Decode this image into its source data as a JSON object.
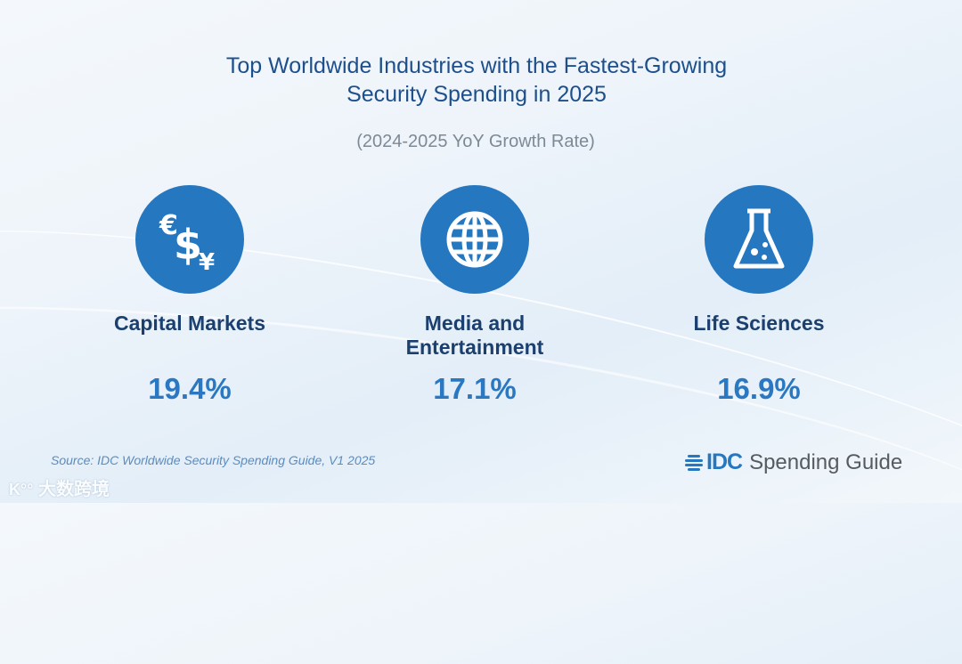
{
  "title_line1": "Top Worldwide Industries with the Fastest-Growing",
  "title_line2": "Security Spending in 2025",
  "subtitle": "(2024-2025 YoY Growth Rate)",
  "industries": [
    {
      "label_line1": "Capital Markets",
      "label_line2": "",
      "value": "19.4%",
      "icon": "currency-icon"
    },
    {
      "label_line1": "Media and",
      "label_line2": "Entertainment",
      "value": "17.1%",
      "icon": "globe-icon"
    },
    {
      "label_line1": "Life Sciences",
      "label_line2": "",
      "value": "16.9%",
      "icon": "flask-icon"
    }
  ],
  "source": "Source: IDC Worldwide Security Spending Guide, V1 2025",
  "logo": {
    "brand": "IDC",
    "product": "Spending Guide"
  },
  "watermark": "大数跨境",
  "colors": {
    "title": "#1c4f8c",
    "accent": "#2577c0",
    "label": "#1b3f6e"
  }
}
